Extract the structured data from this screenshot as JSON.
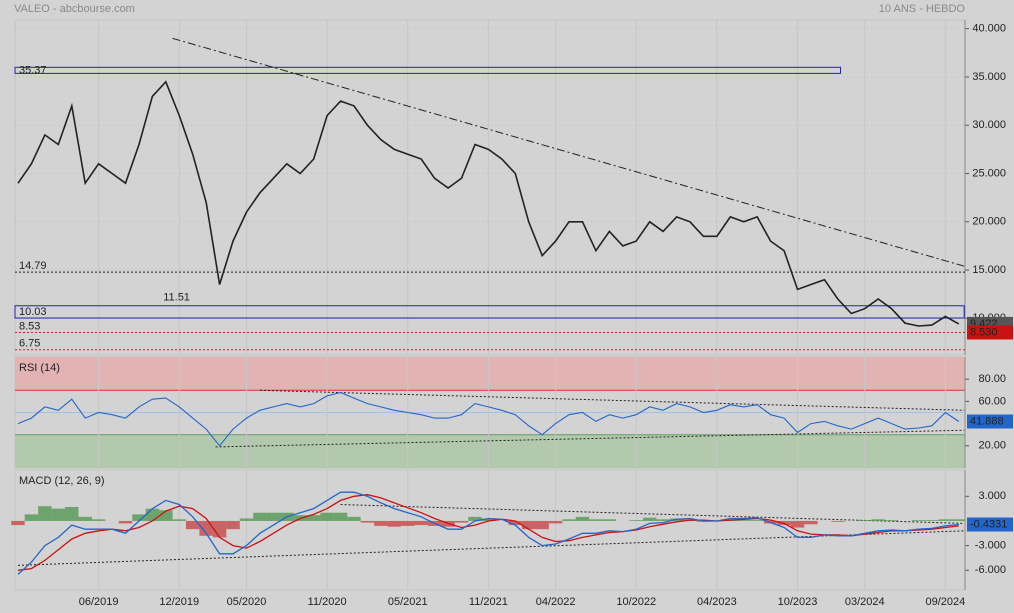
{
  "chart_data": [
    {
      "type": "line",
      "title": "VALEO - abcbourse.com",
      "subtitle": "10 ANS - HEBDO",
      "color": "#222222",
      "values": [
        24,
        26,
        29,
        28,
        32,
        24,
        26,
        25,
        24,
        28,
        33,
        34.5,
        31,
        27,
        22,
        13.5,
        18,
        21,
        23,
        24.5,
        26,
        25,
        26.5,
        31,
        32.5,
        32,
        30,
        28.5,
        27.5,
        27,
        26.5,
        24.5,
        23.5,
        24.5,
        28,
        27.5,
        26.5,
        25,
        20,
        16.5,
        18,
        20,
        20,
        17,
        19,
        17.5,
        18,
        20,
        19,
        20.5,
        20,
        18.5,
        18.5,
        20.5,
        20,
        20.5,
        18,
        17,
        13,
        13.5,
        14,
        12,
        10.5,
        11,
        12,
        11,
        9.5,
        9.2,
        9.3,
        10.2,
        9.42
      ],
      "ylim": [
        6.2,
        40.9
      ],
      "yticks": [
        {
          "value": 40,
          "label": "40.000"
        },
        {
          "value": 35,
          "label": "35.000"
        },
        {
          "value": 30,
          "label": "30.000"
        },
        {
          "value": 25,
          "label": "25.000"
        },
        {
          "value": 20,
          "label": "20.000"
        },
        {
          "value": 15,
          "label": "15.000"
        },
        {
          "value": 10,
          "label": "10.000"
        }
      ],
      "boxes": [
        {
          "label": "35.37",
          "value": 35.37,
          "top": 36.0,
          "x_end": 61.2
        },
        {
          "label": "10.03",
          "value": 10.03,
          "top": 11.3,
          "x_end": 70.4
        }
      ],
      "levels": [
        {
          "label": "14.79",
          "value": 14.79,
          "color": "#222222"
        },
        {
          "label": "8.53",
          "value": 8.53,
          "color": "#cc2222"
        },
        {
          "label": "6.75",
          "value": 6.75,
          "color": "#cc2222"
        }
      ],
      "annotations": [
        {
          "label": "11.51",
          "value": 11.51,
          "x": 11.8
        }
      ],
      "trendlines": [
        {
          "x": [
            11.5,
            70.4
          ],
          "values": [
            39,
            15.4
          ]
        }
      ],
      "last_labels": [
        {
          "label": "9.422",
          "value": 9.422,
          "color": "#555555"
        },
        {
          "label": "8.530",
          "value": 8.53,
          "color": "#cc1111"
        }
      ]
    },
    {
      "type": "line",
      "title": "RSI (14)",
      "color": "#2266cc",
      "values": [
        40,
        45,
        55,
        52,
        62,
        45,
        50,
        48,
        45,
        55,
        62,
        63,
        55,
        45,
        35,
        20,
        35,
        45,
        52,
        55,
        58,
        55,
        58,
        65,
        68,
        63,
        58,
        55,
        52,
        50,
        48,
        45,
        45,
        48,
        58,
        55,
        52,
        48,
        38,
        30,
        40,
        48,
        50,
        42,
        48,
        45,
        48,
        55,
        52,
        58,
        55,
        50,
        52,
        57,
        55,
        57,
        48,
        45,
        32,
        40,
        42,
        38,
        35,
        40,
        45,
        40,
        35,
        36,
        38,
        50,
        41.888
      ],
      "ylim": [
        0,
        100
      ],
      "yticks": [
        {
          "value": 80,
          "label": "80.00"
        },
        {
          "value": 60,
          "label": "60.00"
        },
        {
          "value": 20,
          "label": "20.00"
        }
      ],
      "zones": [
        {
          "from": 70,
          "to": 100,
          "color": "#e3b3b3",
          "line": "#dd3333"
        },
        {
          "from": 0,
          "to": 30,
          "color": "#b3c9ad",
          "line": "#669966"
        }
      ],
      "midline": 50,
      "trendlines": [
        {
          "x": [
            18,
            70.4
          ],
          "values": [
            70,
            52
          ]
        },
        {
          "x": [
            14.7,
            70.4
          ],
          "values": [
            19,
            34
          ]
        }
      ],
      "last_labels": [
        {
          "label": "41.888",
          "value": 41.888,
          "color": "#2266cc"
        }
      ]
    },
    {
      "type": "macd",
      "title": "MACD (12, 26, 9)",
      "series": [
        {
          "name": "MACD",
          "color": "#2266cc",
          "values": [
            -6.5,
            -5,
            -3,
            -2,
            -0.5,
            -1,
            -1,
            -1,
            -1.5,
            0,
            1.5,
            2.5,
            2,
            0.5,
            -1.5,
            -4,
            -4,
            -3,
            -1.5,
            -0.5,
            0.5,
            1,
            1.5,
            2.5,
            3.5,
            3.5,
            3,
            2.2,
            1.5,
            1,
            0.5,
            -0.3,
            -1,
            -1,
            0,
            0.3,
            0.2,
            -0.5,
            -2,
            -3,
            -2.8,
            -2.2,
            -1.5,
            -1.5,
            -1.2,
            -1.3,
            -1,
            -0.3,
            -0.2,
            0.2,
            0.3,
            0,
            0,
            0.3,
            0.3,
            0.4,
            -0.2,
            -0.8,
            -2,
            -2,
            -1.7,
            -1.8,
            -1.8,
            -1.5,
            -1.2,
            -1.1,
            -1.2,
            -1,
            -0.9,
            -0.6,
            -0.4331
          ]
        },
        {
          "name": "Signal",
          "color": "#cc1111",
          "values": [
            -6,
            -5.8,
            -4.8,
            -3.5,
            -2.2,
            -1.5,
            -1.2,
            -1,
            -1.2,
            -0.8,
            0,
            1.2,
            1.8,
            1.5,
            0.3,
            -2,
            -3,
            -3.3,
            -2.5,
            -1.5,
            -0.5,
            0.3,
            0.8,
            1.5,
            2.5,
            3,
            3.2,
            2.8,
            2.2,
            1.6,
            1,
            0.3,
            -0.3,
            -0.8,
            -0.5,
            0,
            0.2,
            0,
            -1,
            -2,
            -2.5,
            -2.4,
            -2,
            -1.7,
            -1.4,
            -1.3,
            -1.1,
            -0.7,
            -0.4,
            -0.1,
            0.1,
            0.1,
            0,
            0.1,
            0.2,
            0.3,
            0.1,
            -0.3,
            -1.2,
            -1.6,
            -1.7,
            -1.7,
            -1.8,
            -1.6,
            -1.4,
            -1.2,
            -1.2,
            -1.1,
            -1,
            -0.8,
            -0.6
          ]
        },
        {
          "name": "Histogram",
          "color": "#5a9a5a",
          "negative_color": "#c85050",
          "values": [
            -0.5,
            0.8,
            1.8,
            1.5,
            1.7,
            0.5,
            0.2,
            0,
            -0.3,
            0.8,
            1.5,
            1.3,
            0.2,
            -1,
            -1.8,
            -2,
            -1,
            0.3,
            1,
            1,
            1,
            0.7,
            0.7,
            1,
            1,
            0.5,
            -0.2,
            -0.6,
            -0.7,
            -0.6,
            -0.5,
            -0.6,
            -0.7,
            -0.2,
            0.5,
            0.3,
            0,
            -0.5,
            -1,
            -1,
            -0.3,
            0.2,
            0.5,
            0.2,
            0.2,
            0,
            0.1,
            0.4,
            0.2,
            0.3,
            0.2,
            -0.1,
            0,
            0.2,
            0.1,
            0.1,
            -0.3,
            -0.5,
            -0.8,
            -0.4,
            0,
            -0.1,
            0,
            0.1,
            0.2,
            0.1,
            0,
            0.1,
            0.1,
            0.2,
            0.2
          ]
        }
      ],
      "ylim": [
        -8.4,
        6.2
      ],
      "yticks": [
        {
          "value": 3,
          "label": "3.000"
        },
        {
          "value": -3,
          "label": "-3.000"
        },
        {
          "value": -6,
          "label": "-6.000"
        }
      ],
      "xticks": [
        {
          "value": 6,
          "label": "06/2019"
        },
        {
          "value": 12,
          "label": "12/2019"
        },
        {
          "value": 17,
          "label": "05/2020"
        },
        {
          "value": 23,
          "label": "11/2020"
        },
        {
          "value": 29,
          "label": "05/2021"
        },
        {
          "value": 35,
          "label": "11/2021"
        },
        {
          "value": 40,
          "label": "04/2022"
        },
        {
          "value": 46,
          "label": "10/2022"
        },
        {
          "value": 52,
          "label": "04/2023"
        },
        {
          "value": 58,
          "label": "10/2023"
        },
        {
          "value": 63,
          "label": "03/2024"
        },
        {
          "value": 69,
          "label": "09/2024"
        }
      ],
      "trendlines": [
        {
          "x": [
            24,
            70.4
          ],
          "values": [
            2,
            -0.3
          ]
        },
        {
          "x": [
            0,
            70.4
          ],
          "values": [
            -5.4,
            -1.2
          ]
        }
      ],
      "last_labels": [
        {
          "label": "-0.4331",
          "value": -0.4331,
          "color": "#2266cc"
        }
      ]
    }
  ]
}
